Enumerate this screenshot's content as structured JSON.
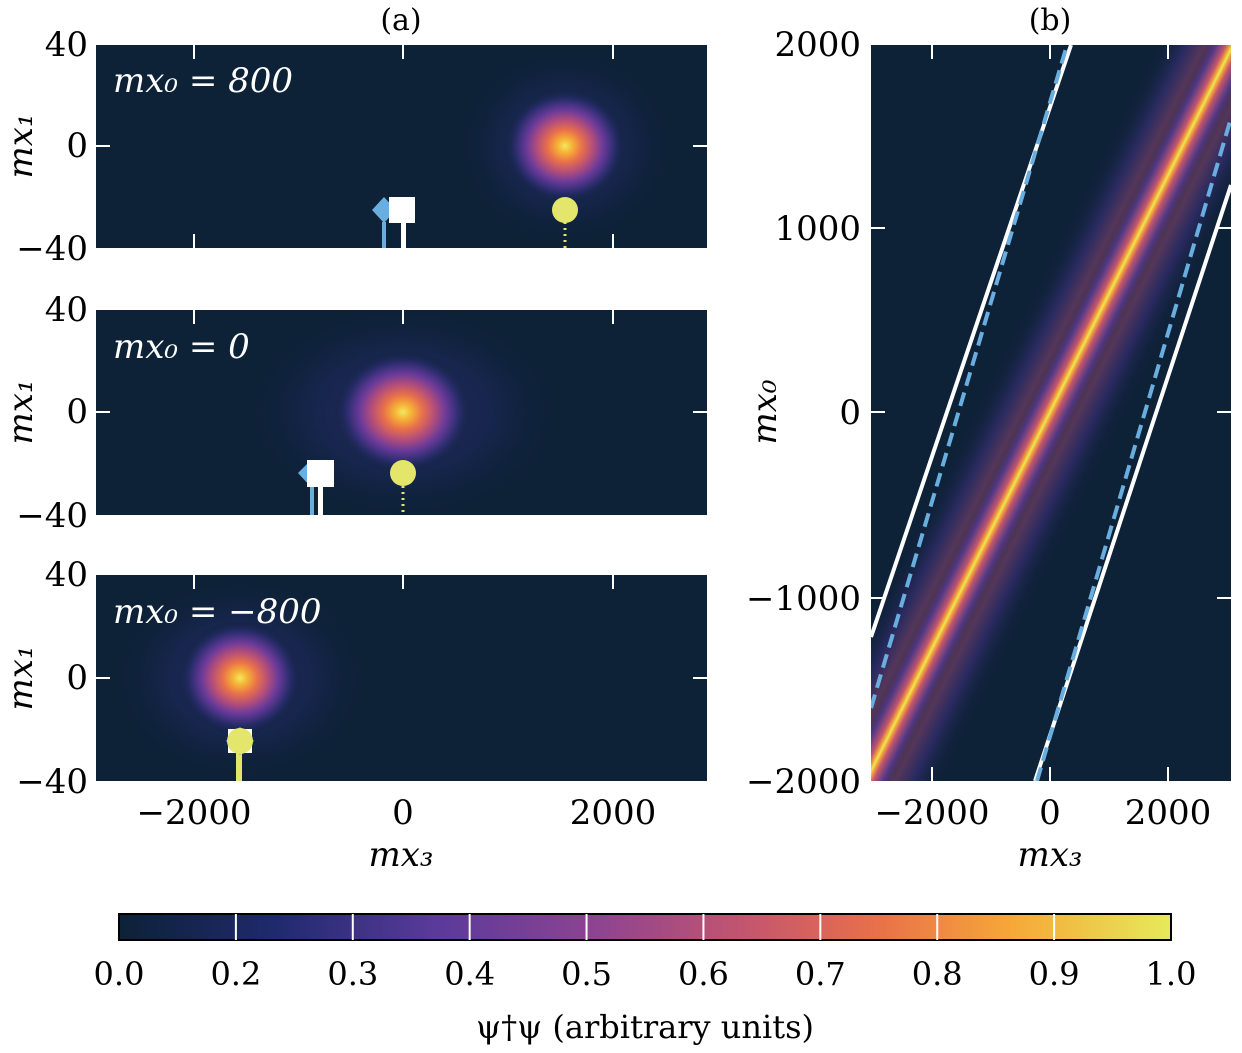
{
  "colors": {
    "cmap": [
      "#0d2137",
      "#1f2a6e",
      "#5a3a9a",
      "#a04a8c",
      "#d6605f",
      "#f08a3a",
      "#f6c233",
      "#e6ea5a"
    ],
    "white_line": "#ffffff",
    "blue_dashed": "#6aaee0",
    "marker_yellow": "#e3e66b",
    "marker_blue": "#6aaee0",
    "marker_white": "#ffffff"
  },
  "chart_data": [
    {
      "type": "heatmap",
      "panel": "(a)",
      "annotation": "mx₀ = 800",
      "mx0": 800,
      "xlim": [
        -2800,
        2900
      ],
      "ylim": [
        -40,
        40
      ],
      "xticks": [
        -2000,
        0,
        2000
      ],
      "yticks": [
        -40,
        0,
        40
      ],
      "ylabel": "mx₁",
      "xlabel": "",
      "peak": {
        "x": 1550,
        "y": 0,
        "value": 1.0
      },
      "markers": [
        {
          "shape": "diamond",
          "x": -180,
          "color": "blue"
        },
        {
          "shape": "square",
          "x": 0,
          "color": "white"
        },
        {
          "shape": "circle",
          "x": 1550,
          "color": "yellow"
        }
      ]
    },
    {
      "type": "heatmap",
      "panel": "(a)",
      "annotation": "mx₀ = 0",
      "mx0": 0,
      "xlim": [
        -2800,
        2900
      ],
      "ylim": [
        -40,
        40
      ],
      "xticks": [
        -2000,
        0,
        2000
      ],
      "yticks": [
        -40,
        0,
        40
      ],
      "ylabel": "mx₁",
      "xlabel": "",
      "peak": {
        "x": 0,
        "y": 0,
        "value": 1.0
      },
      "markers": [
        {
          "shape": "diamond",
          "x": -830,
          "color": "blue"
        },
        {
          "shape": "square",
          "x": -760,
          "color": "white"
        },
        {
          "shape": "circle",
          "x": 0,
          "color": "yellow"
        }
      ]
    },
    {
      "type": "heatmap",
      "panel": "(a)",
      "annotation": "mx₀ = −800",
      "mx0": -800,
      "xlim": [
        -2800,
        2900
      ],
      "ylim": [
        -40,
        40
      ],
      "xticks": [
        -2000,
        0,
        2000
      ],
      "xtick_labels": [
        "−2000",
        "0",
        "2000"
      ],
      "yticks": [
        -40,
        0,
        40
      ],
      "ylabel": "mx₁",
      "xlabel": "mx₃",
      "peak": {
        "x": -1550,
        "y": 0,
        "value": 1.0
      },
      "markers": [
        {
          "shape": "diamond",
          "x": -1550,
          "color": "blue"
        },
        {
          "shape": "square",
          "x": -1550,
          "color": "white"
        },
        {
          "shape": "circle",
          "x": -1550,
          "color": "yellow"
        }
      ]
    },
    {
      "type": "heatmap",
      "panel": "(b)",
      "xlim": [
        -2800,
        2900
      ],
      "ylim": [
        -2000,
        2000
      ],
      "xticks": [
        -2000,
        0,
        2000
      ],
      "xtick_labels": [
        "−2000",
        "0",
        "2000"
      ],
      "yticks": [
        -2000,
        -1000,
        0,
        1000,
        2000
      ],
      "ytick_labels": [
        "−2000",
        "−1000",
        "0",
        "1000",
        "2000"
      ],
      "ylabel": "mx₀",
      "xlabel": "mx₃",
      "ridge": {
        "slope_mx3_per_mx0": 1.94,
        "x_at_mx0_0": 0
      },
      "lines": [
        {
          "style": "solid",
          "color": "white",
          "points": [
            [
              -2800,
              -1220
            ],
            [
              1150,
              2000
            ]
          ]
        },
        {
          "style": "solid",
          "color": "white",
          "points": [
            [
              -150,
              -2000
            ],
            [
              2900,
              1220
            ]
          ]
        },
        {
          "style": "dashed",
          "color": "blue",
          "points": [
            [
              -2800,
              -1580
            ],
            [
              1050,
              2000
            ]
          ]
        },
        {
          "style": "dashed",
          "color": "blue",
          "points": [
            [
              -100,
              -2000
            ],
            [
              2900,
              1580
            ]
          ]
        }
      ]
    }
  ],
  "colorbar": {
    "min": 0.0,
    "max": 1.0,
    "ticks": [
      0.0,
      0.2,
      0.3,
      0.4,
      0.5,
      0.6,
      0.7,
      0.8,
      0.9,
      1.0
    ],
    "tick_labels": [
      "0.0",
      "0.2",
      "0.3",
      "0.4",
      "0.5",
      "0.6",
      "0.7",
      "0.8",
      "0.9",
      "1.0"
    ],
    "label": "ψ†ψ (arbitrary units)"
  },
  "labels": {
    "panel_a": "(a)",
    "panel_b": "(b)"
  }
}
